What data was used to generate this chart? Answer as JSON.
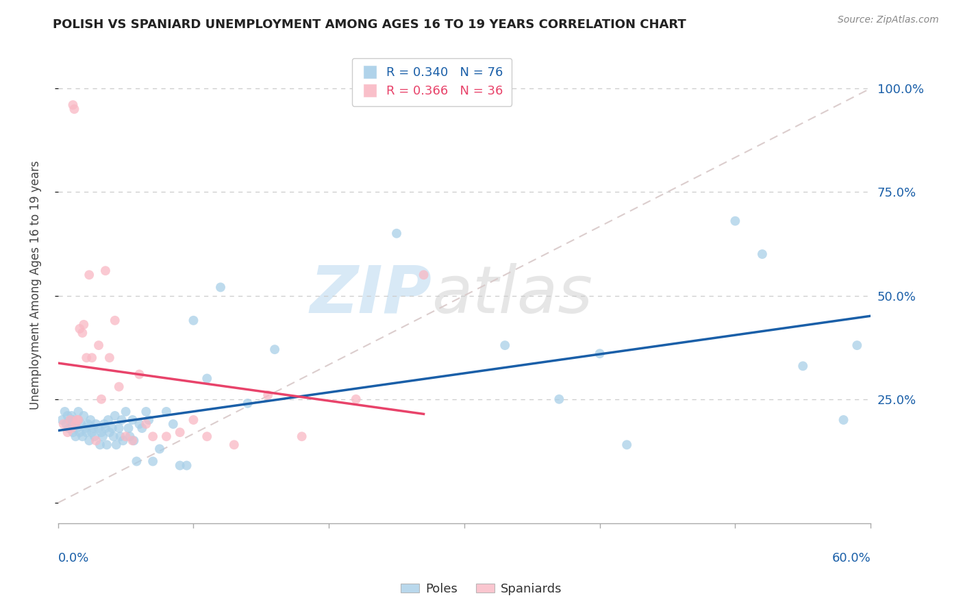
{
  "title": "POLISH VS SPANIARD UNEMPLOYMENT AMONG AGES 16 TO 19 YEARS CORRELATION CHART",
  "source": "Source: ZipAtlas.com",
  "ylabel": "Unemployment Among Ages 16 to 19 years",
  "xlim": [
    0.0,
    0.6
  ],
  "ylim": [
    -0.05,
    1.1
  ],
  "poles_R": 0.34,
  "poles_N": 76,
  "spaniards_R": 0.366,
  "spaniards_N": 36,
  "poles_color": "#a8cfe8",
  "spaniards_color": "#f9b8c4",
  "poles_trend_color": "#1a5fa8",
  "spaniards_trend_color": "#e8436a",
  "diagonal_color": "#d8c8c8",
  "background_color": "#ffffff",
  "poles_x": [
    0.003,
    0.005,
    0.006,
    0.007,
    0.008,
    0.009,
    0.01,
    0.01,
    0.011,
    0.011,
    0.012,
    0.013,
    0.014,
    0.015,
    0.015,
    0.016,
    0.017,
    0.018,
    0.019,
    0.02,
    0.021,
    0.022,
    0.023,
    0.024,
    0.025,
    0.026,
    0.027,
    0.028,
    0.03,
    0.031,
    0.032,
    0.033,
    0.034,
    0.035,
    0.036,
    0.037,
    0.038,
    0.04,
    0.041,
    0.042,
    0.043,
    0.045,
    0.046,
    0.047,
    0.048,
    0.05,
    0.052,
    0.053,
    0.055,
    0.056,
    0.058,
    0.06,
    0.062,
    0.065,
    0.067,
    0.07,
    0.075,
    0.08,
    0.085,
    0.09,
    0.095,
    0.1,
    0.11,
    0.12,
    0.14,
    0.16,
    0.25,
    0.33,
    0.37,
    0.4,
    0.42,
    0.5,
    0.52,
    0.55,
    0.58,
    0.59
  ],
  "poles_y": [
    0.2,
    0.22,
    0.19,
    0.21,
    0.18,
    0.2,
    0.19,
    0.21,
    0.17,
    0.2,
    0.19,
    0.16,
    0.18,
    0.2,
    0.22,
    0.17,
    0.19,
    0.16,
    0.21,
    0.18,
    0.17,
    0.19,
    0.15,
    0.2,
    0.17,
    0.18,
    0.16,
    0.19,
    0.18,
    0.14,
    0.17,
    0.16,
    0.19,
    0.18,
    0.14,
    0.2,
    0.17,
    0.18,
    0.16,
    0.21,
    0.14,
    0.18,
    0.16,
    0.2,
    0.15,
    0.22,
    0.18,
    0.16,
    0.2,
    0.15,
    0.1,
    0.19,
    0.18,
    0.22,
    0.2,
    0.1,
    0.13,
    0.22,
    0.19,
    0.09,
    0.09,
    0.44,
    0.3,
    0.52,
    0.24,
    0.37,
    0.65,
    0.38,
    0.25,
    0.36,
    0.14,
    0.68,
    0.6,
    0.33,
    0.2,
    0.38
  ],
  "spaniards_x": [
    0.004,
    0.007,
    0.009,
    0.01,
    0.011,
    0.012,
    0.013,
    0.014,
    0.015,
    0.016,
    0.018,
    0.019,
    0.021,
    0.023,
    0.025,
    0.028,
    0.03,
    0.032,
    0.035,
    0.038,
    0.042,
    0.045,
    0.05,
    0.055,
    0.06,
    0.065,
    0.07,
    0.08,
    0.09,
    0.1,
    0.11,
    0.13,
    0.155,
    0.18,
    0.22,
    0.27
  ],
  "spaniards_y": [
    0.19,
    0.17,
    0.2,
    0.18,
    0.96,
    0.95,
    0.19,
    0.2,
    0.2,
    0.42,
    0.41,
    0.43,
    0.35,
    0.55,
    0.35,
    0.15,
    0.38,
    0.25,
    0.56,
    0.35,
    0.44,
    0.28,
    0.16,
    0.15,
    0.31,
    0.19,
    0.16,
    0.16,
    0.17,
    0.2,
    0.16,
    0.14,
    0.26,
    0.16,
    0.25,
    0.55
  ]
}
